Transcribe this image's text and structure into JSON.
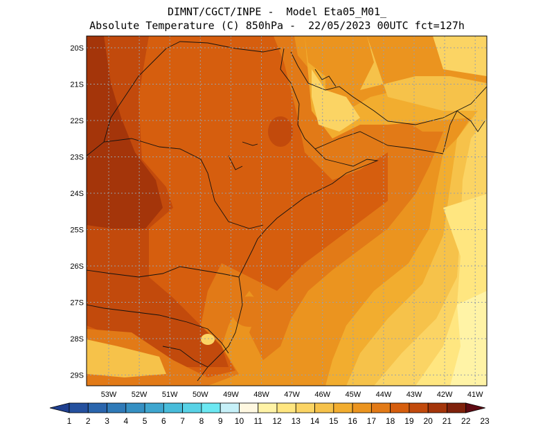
{
  "title": {
    "line1": "DIMNT/CGCT/INPE -  Model Eta05_M01_",
    "line2": "Absolute Temperature (C) 850hPa -  22/05/2023 00UTC fct=127h"
  },
  "map": {
    "lon_labels": [
      "53W",
      "52W",
      "51W",
      "50W",
      "49W",
      "48W",
      "47W",
      "46W",
      "45W",
      "44W",
      "43W",
      "42W",
      "41W"
    ],
    "lat_labels": [
      "20S",
      "21S",
      "22S",
      "23S",
      "24S",
      "25S",
      "26S",
      "27S",
      "28S",
      "29S"
    ]
  },
  "colorbar": {
    "labels": [
      "1",
      "2",
      "3",
      "4",
      "5",
      "6",
      "7",
      "8",
      "9",
      "10",
      "11",
      "12",
      "13",
      "14",
      "15",
      "16",
      "17",
      "18",
      "19",
      "20",
      "21",
      "22",
      "23"
    ],
    "colors": [
      "#1f3f8f",
      "#24509e",
      "#2a65ad",
      "#2f7ab8",
      "#3590c3",
      "#3ea6cf",
      "#48bcda",
      "#58d2e6",
      "#6ce8f2",
      "#c6f0f8",
      "#fff8e1",
      "#fff3a6",
      "#ffe680",
      "#fbd464",
      "#f6c24a",
      "#f2ad2f",
      "#eb941f",
      "#e27a17",
      "#d65e0e",
      "#c24a0c",
      "#a4350a",
      "#7f210b",
      "#5e0a12"
    ]
  },
  "palette": {
    "t13": "#fff3a6",
    "t14": "#ffe680",
    "t15": "#fbd464",
    "t16": "#f6c24a",
    "t17": "#f2ad2f",
    "t18": "#eb941f",
    "t19": "#e27a17",
    "t20": "#d65e0e",
    "t21": "#c24a0c",
    "t22": "#a4350a",
    "t23": "#7f210b"
  }
}
